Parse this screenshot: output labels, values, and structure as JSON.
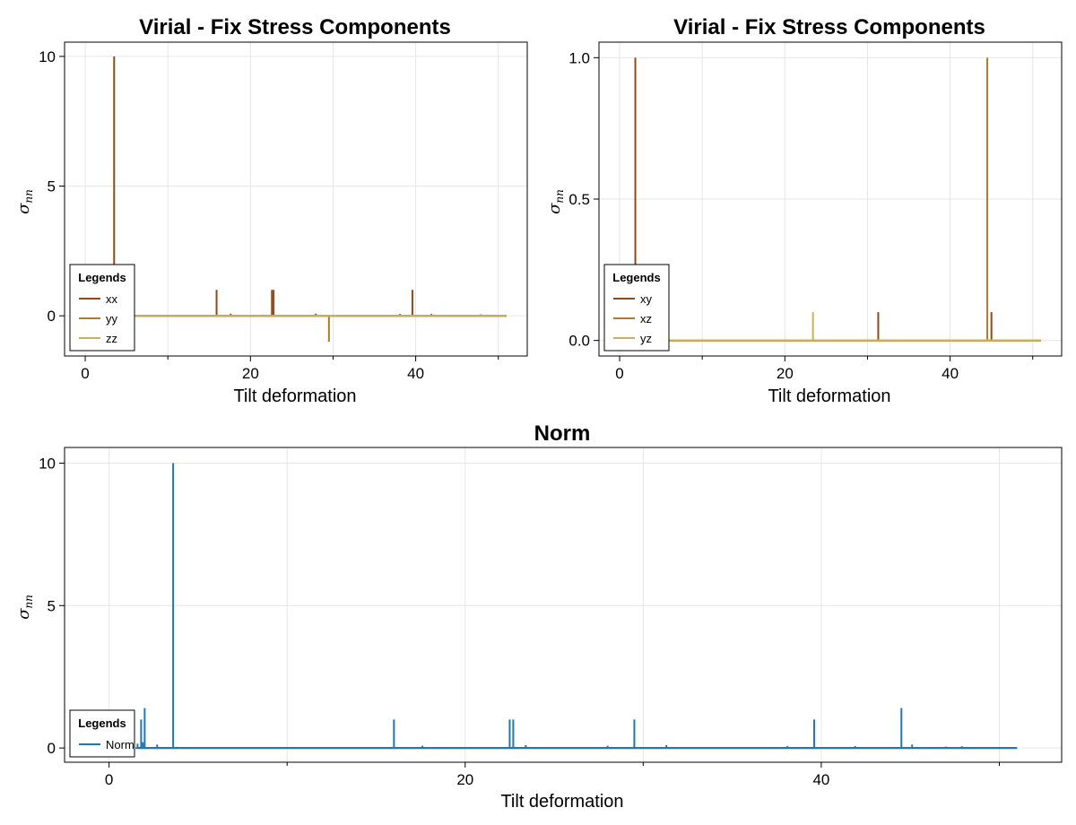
{
  "chart_data": [
    {
      "type": "line",
      "title": "Virial - Fix Stress Components",
      "xlabel": "Tilt deformation",
      "ylabel": "σ",
      "ylabel_sub": "nn",
      "xlim": [
        -2.5,
        53.5
      ],
      "ylim": [
        -1.55,
        10.55
      ],
      "xticks": [
        0,
        20,
        40
      ],
      "yticks": [
        0,
        5,
        10
      ],
      "grid": true,
      "legend": {
        "title": "Legends",
        "position": "bottom-left"
      },
      "series": [
        {
          "name": "xx",
          "color": "#8f4a17",
          "baseline": 0,
          "x_start": 1.5,
          "x_end": 51,
          "spikes": [
            {
              "x": 3.5,
              "y": 10
            },
            {
              "x": 15.9,
              "y": 1
            },
            {
              "x": 22.6,
              "y": 1
            },
            {
              "x": 22.8,
              "y": 1
            },
            {
              "x": 39.6,
              "y": 1
            },
            {
              "x": 17.6,
              "y": 0.08
            },
            {
              "x": 27.9,
              "y": 0.08
            },
            {
              "x": 38.1,
              "y": 0.07
            },
            {
              "x": 41.9,
              "y": 0.07
            }
          ]
        },
        {
          "name": "yy",
          "color": "#ad7a2a",
          "baseline": 0,
          "x_start": 1.5,
          "x_end": 51,
          "spikes": [
            {
              "x": 29.5,
              "y": -1
            },
            {
              "x": 21.5,
              "y": 0.05
            },
            {
              "x": 47.9,
              "y": 0.06
            }
          ]
        },
        {
          "name": "zz",
          "color": "#c8b05c",
          "baseline": 0,
          "x_start": 1.5,
          "x_end": 51,
          "spikes": []
        }
      ]
    },
    {
      "type": "line",
      "title": "Virial - Fix Stress Components",
      "xlabel": "Tilt deformation",
      "ylabel": "σ",
      "ylabel_sub": "nn",
      "xlim": [
        -2.5,
        53.5
      ],
      "ylim": [
        -0.055,
        1.055
      ],
      "xticks": [
        0,
        20,
        40
      ],
      "yticks": [
        0.0,
        0.5,
        1.0
      ],
      "ytick_labels": [
        "0.0",
        "0.5",
        "1.0"
      ],
      "grid": true,
      "legend": {
        "title": "Legends",
        "position": "bottom-left"
      },
      "series": [
        {
          "name": "xy",
          "color": "#8f4a17",
          "baseline": 0,
          "x_start": 1.5,
          "x_end": 51,
          "spikes": [
            {
              "x": 1.9,
              "y": 1
            },
            {
              "x": 31.3,
              "y": 0.1
            },
            {
              "x": 45.0,
              "y": 0.1
            }
          ]
        },
        {
          "name": "xz",
          "color": "#ad7a2a",
          "baseline": 0,
          "x_start": 1.5,
          "x_end": 51,
          "spikes": [
            {
              "x": 44.5,
              "y": 1
            }
          ]
        },
        {
          "name": "yz",
          "color": "#c8b05c",
          "baseline": 0,
          "x_start": 1.5,
          "x_end": 51,
          "spikes": [
            {
              "x": 23.4,
              "y": 0.1
            }
          ]
        }
      ]
    },
    {
      "type": "line",
      "title": "Norm",
      "xlabel": "Tilt deformation",
      "ylabel": "σ",
      "ylabel_sub": "nn",
      "xlim": [
        -2.5,
        53.5
      ],
      "ylim": [
        -0.5,
        10.55
      ],
      "xticks": [
        0,
        20,
        40
      ],
      "yticks": [
        0,
        5,
        10
      ],
      "grid": true,
      "legend": {
        "title": "Legends",
        "position": "bottom-left"
      },
      "series": [
        {
          "name": "Norm",
          "color": "#1f77b4",
          "baseline": 0,
          "x_start": 1.5,
          "x_end": 51,
          "spikes": [
            {
              "x": 1.6,
              "y": 0.15
            },
            {
              "x": 1.8,
              "y": 1
            },
            {
              "x": 1.9,
              "y": 0.2
            },
            {
              "x": 2.0,
              "y": 1.4
            },
            {
              "x": 2.7,
              "y": 0.12
            },
            {
              "x": 3.6,
              "y": 10
            },
            {
              "x": 16.0,
              "y": 1
            },
            {
              "x": 17.6,
              "y": 0.08
            },
            {
              "x": 22.5,
              "y": 1
            },
            {
              "x": 22.7,
              "y": 1
            },
            {
              "x": 23.4,
              "y": 0.1
            },
            {
              "x": 28.0,
              "y": 0.08
            },
            {
              "x": 29.5,
              "y": 1
            },
            {
              "x": 31.3,
              "y": 0.1
            },
            {
              "x": 38.1,
              "y": 0.07
            },
            {
              "x": 39.6,
              "y": 1
            },
            {
              "x": 41.9,
              "y": 0.07
            },
            {
              "x": 44.5,
              "y": 1.4
            },
            {
              "x": 45.1,
              "y": 0.12
            },
            {
              "x": 47.0,
              "y": 0.05
            },
            {
              "x": 47.9,
              "y": 0.06
            }
          ]
        }
      ]
    }
  ]
}
